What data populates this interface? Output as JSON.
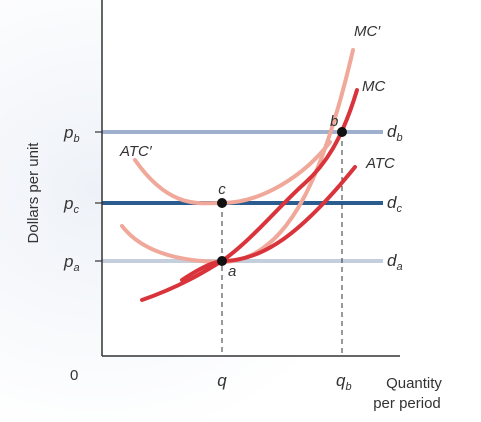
{
  "axes": {
    "y_title": "Dollars per unit",
    "x_title_line1": "Quantity",
    "x_title_line2": "per period",
    "origin": "0"
  },
  "price_labels": [
    {
      "id": "pb",
      "base": "p",
      "sub": "b"
    },
    {
      "id": "pc",
      "base": "p",
      "sub": "c"
    },
    {
      "id": "pa",
      "base": "p",
      "sub": "a"
    }
  ],
  "quantity_labels": [
    {
      "id": "q",
      "base": "q",
      "sub": ""
    },
    {
      "id": "qb",
      "base": "q",
      "sub": "b"
    }
  ],
  "demand_lines": [
    {
      "id": "db",
      "base": "d",
      "sub": "b",
      "color": "#9fb0cf"
    },
    {
      "id": "dc",
      "base": "d",
      "sub": "c",
      "color": "#2a5c8f"
    },
    {
      "id": "da",
      "base": "d",
      "sub": "a",
      "color": "#c5cedd"
    }
  ],
  "curves": [
    {
      "id": "mc_prime",
      "label": "MC′",
      "color": "#f0a89a"
    },
    {
      "id": "atc_prime",
      "label": "ATC′",
      "color": "#f0a89a"
    },
    {
      "id": "mc",
      "label": "MC",
      "color": "#d9343b"
    },
    {
      "id": "atc",
      "label": "ATC",
      "color": "#d9343b"
    }
  ],
  "points": [
    {
      "id": "a",
      "label": "a"
    },
    {
      "id": "b",
      "label": "b"
    },
    {
      "id": "c",
      "label": "c"
    }
  ],
  "colors": {
    "axis": "#333333",
    "point": "#111111",
    "background_glow": "#eef2f8"
  }
}
